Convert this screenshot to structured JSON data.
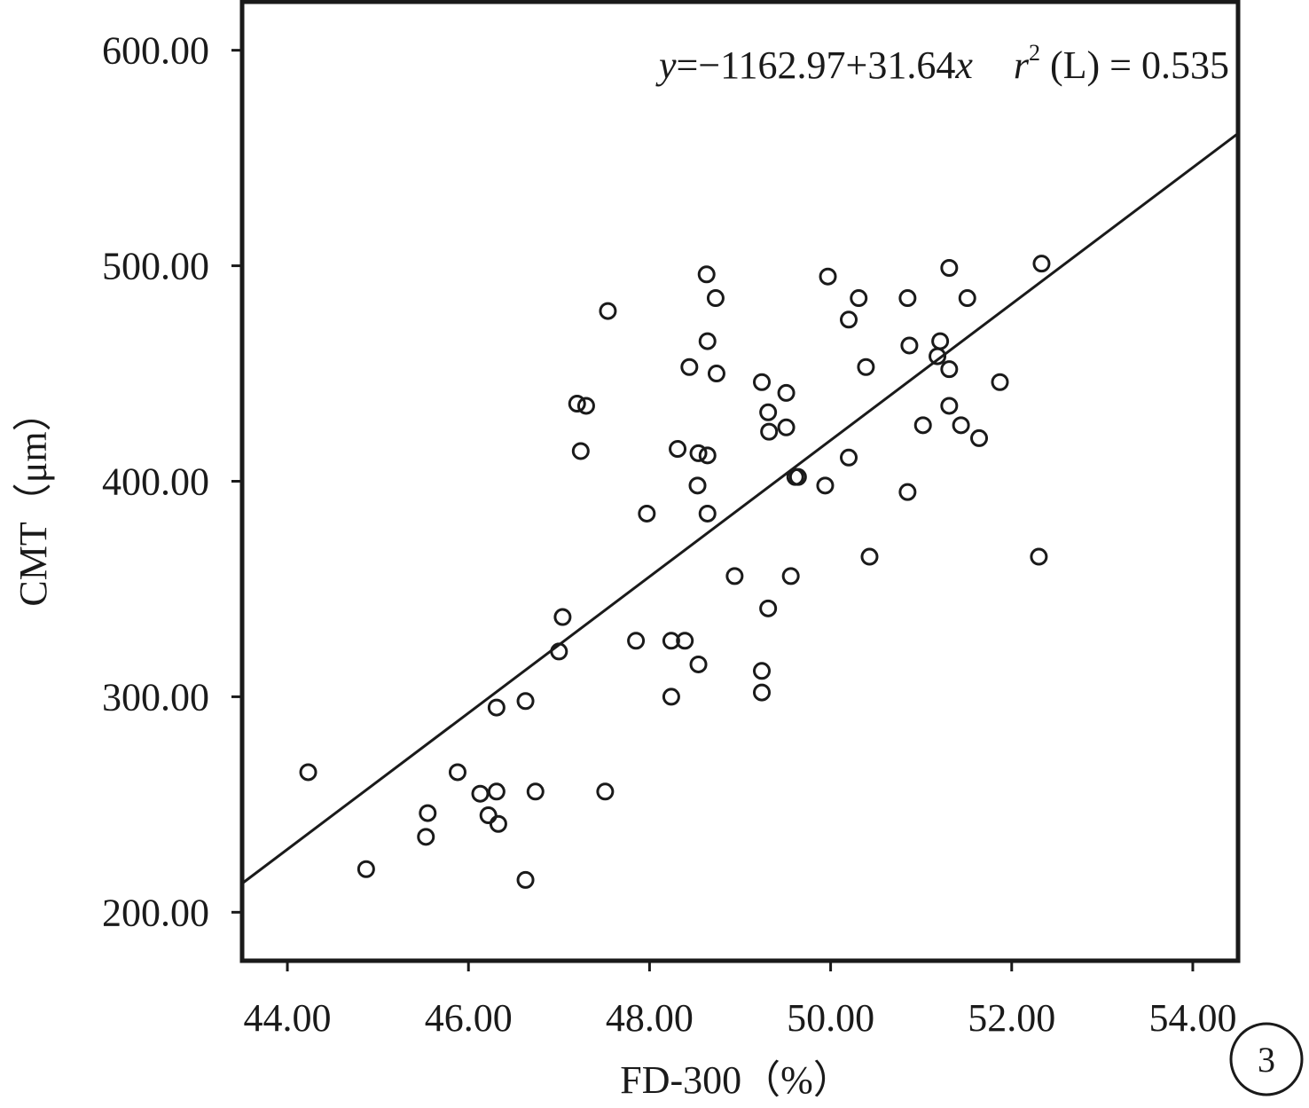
{
  "chart_data": {
    "type": "scatter",
    "xlabel": "FD-300（%）",
    "ylabel": "CMT（μm）",
    "xlim": [
      43.5,
      54.5
    ],
    "ylim": [
      177.5,
      622.5
    ],
    "x_ticks": [
      "44.00",
      "46.00",
      "48.00",
      "50.00",
      "52.00",
      "54.00"
    ],
    "y_ticks": [
      "200.00",
      "300.00",
      "400.00",
      "500.00",
      "600.00"
    ],
    "annotation": {
      "y_var": "y",
      "equation": "=−1162.97+31.64",
      "x_var": "x",
      "r_var": "r",
      "r_exp": "2",
      "r_text": " (L) = 0.535"
    },
    "panel_label": "3",
    "fit_line": {
      "intercept": -1162.97,
      "slope": 31.64
    },
    "grid": false,
    "series": [
      {
        "marker": "open-circle",
        "points": [
          [
            44.23,
            265
          ],
          [
            44.87,
            220
          ],
          [
            45.53,
            235
          ],
          [
            45.55,
            246
          ],
          [
            45.88,
            265
          ],
          [
            46.13,
            255
          ],
          [
            46.22,
            245
          ],
          [
            46.31,
            295
          ],
          [
            46.31,
            256
          ],
          [
            46.33,
            241
          ],
          [
            46.63,
            298
          ],
          [
            46.63,
            215
          ],
          [
            46.74,
            256
          ],
          [
            47.0,
            321
          ],
          [
            47.04,
            337
          ],
          [
            47.2,
            436
          ],
          [
            47.24,
            414
          ],
          [
            47.3,
            435
          ],
          [
            47.51,
            256
          ],
          [
            47.54,
            479
          ],
          [
            47.85,
            326
          ],
          [
            47.97,
            385
          ],
          [
            48.24,
            326
          ],
          [
            48.24,
            300
          ],
          [
            48.31,
            415
          ],
          [
            48.39,
            326
          ],
          [
            48.44,
            453
          ],
          [
            48.53,
            398
          ],
          [
            48.54,
            413
          ],
          [
            48.54,
            315
          ],
          [
            48.63,
            496
          ],
          [
            48.64,
            465
          ],
          [
            48.64,
            412
          ],
          [
            48.64,
            385
          ],
          [
            48.73,
            485
          ],
          [
            48.74,
            450
          ],
          [
            48.94,
            356
          ],
          [
            49.24,
            446
          ],
          [
            49.24,
            312
          ],
          [
            49.24,
            302
          ],
          [
            49.31,
            432
          ],
          [
            49.31,
            341
          ],
          [
            49.32,
            423
          ],
          [
            49.51,
            441
          ],
          [
            49.51,
            425
          ],
          [
            49.56,
            356
          ],
          [
            49.61,
            402
          ],
          [
            49.64,
            402
          ],
          [
            49.94,
            398
          ],
          [
            49.97,
            495
          ],
          [
            50.2,
            475
          ],
          [
            50.2,
            411
          ],
          [
            50.31,
            485
          ],
          [
            50.39,
            453
          ],
          [
            50.43,
            365
          ],
          [
            50.85,
            485
          ],
          [
            50.85,
            395
          ],
          [
            50.87,
            463
          ],
          [
            51.02,
            426
          ],
          [
            51.18,
            458
          ],
          [
            51.21,
            465
          ],
          [
            51.31,
            499
          ],
          [
            51.31,
            452
          ],
          [
            51.31,
            435
          ],
          [
            51.44,
            426
          ],
          [
            51.51,
            485
          ],
          [
            51.64,
            420
          ],
          [
            51.87,
            446
          ],
          [
            52.3,
            365
          ],
          [
            52.33,
            501
          ]
        ]
      }
    ]
  }
}
